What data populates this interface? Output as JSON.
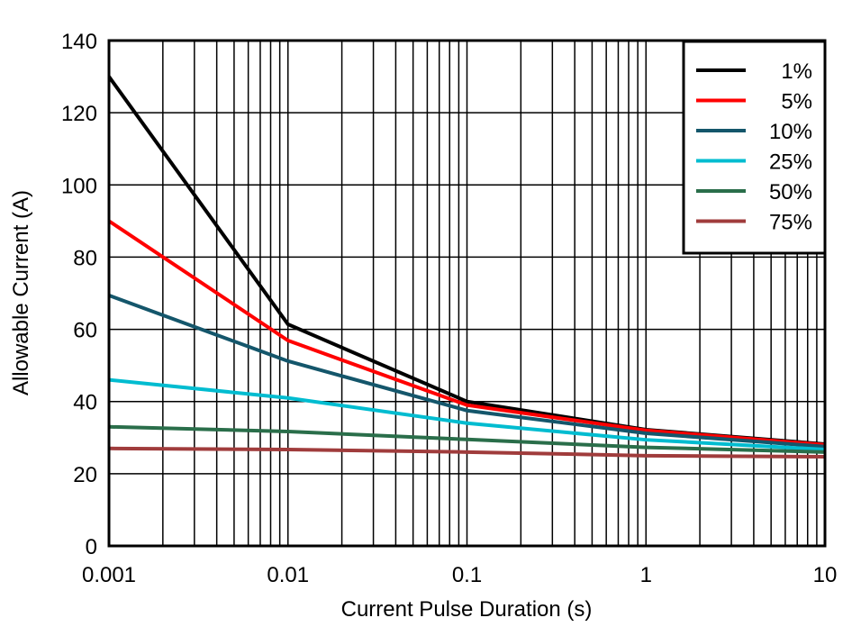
{
  "chart_data": {
    "type": "line",
    "title": "",
    "xlabel": "Current Pulse Duration (s)",
    "ylabel": "Allowable Current (A)",
    "xscale": "log",
    "xlim": [
      0.001,
      10
    ],
    "ylim": [
      0,
      140
    ],
    "grid": true,
    "legend_position": "top-right",
    "x_ticks": [
      "0.001",
      "0.01",
      "0.1",
      "1",
      "10"
    ],
    "y_ticks": [
      "0",
      "20",
      "40",
      "60",
      "80",
      "100",
      "120",
      "140"
    ],
    "x": [
      0.001,
      0.01,
      0.1,
      1,
      10
    ],
    "series": [
      {
        "name": "1%",
        "color": "#000000",
        "values": [
          130,
          61.4,
          40,
          32.2,
          28.2
        ]
      },
      {
        "name": "5%",
        "color": "#ff0000",
        "values": [
          90,
          56.9,
          39,
          32,
          28
        ]
      },
      {
        "name": "10%",
        "color": "#14566b",
        "values": [
          69.4,
          51.2,
          37.5,
          31.2,
          27.5
        ]
      },
      {
        "name": "25%",
        "color": "#00bcd0",
        "values": [
          46,
          41,
          34,
          29.4,
          26.7
        ]
      },
      {
        "name": "50%",
        "color": "#2a6e4a",
        "values": [
          33,
          31.7,
          29.5,
          27.3,
          26
        ]
      },
      {
        "name": "75%",
        "color": "#a03c3c",
        "values": [
          27,
          26.7,
          26,
          25,
          24.7
        ]
      }
    ]
  }
}
